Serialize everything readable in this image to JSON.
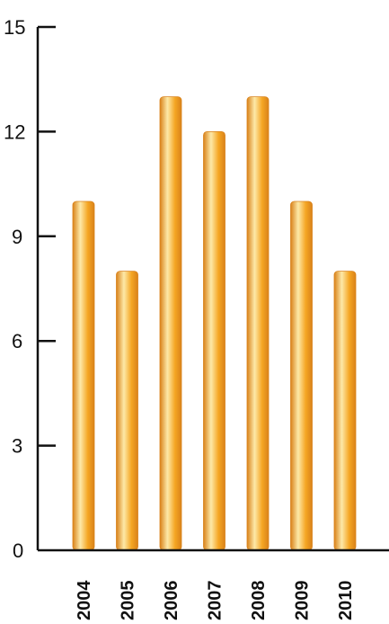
{
  "chart_data": {
    "type": "bar",
    "categories": [
      "2004",
      "2005",
      "2006",
      "2007",
      "2008",
      "2009",
      "2010"
    ],
    "values": [
      10,
      8,
      13,
      12,
      13,
      10,
      8
    ],
    "title": "",
    "xlabel": "",
    "ylabel": "",
    "ylim": [
      0,
      15
    ],
    "yticks": [
      0,
      3,
      6,
      9,
      12,
      15
    ],
    "grid": false,
    "legend": "none",
    "bar_color": "#f5a623",
    "bar_highlight": "#fde9a8",
    "bar_shadow": "#d9821a",
    "axis_color": "#111111"
  }
}
